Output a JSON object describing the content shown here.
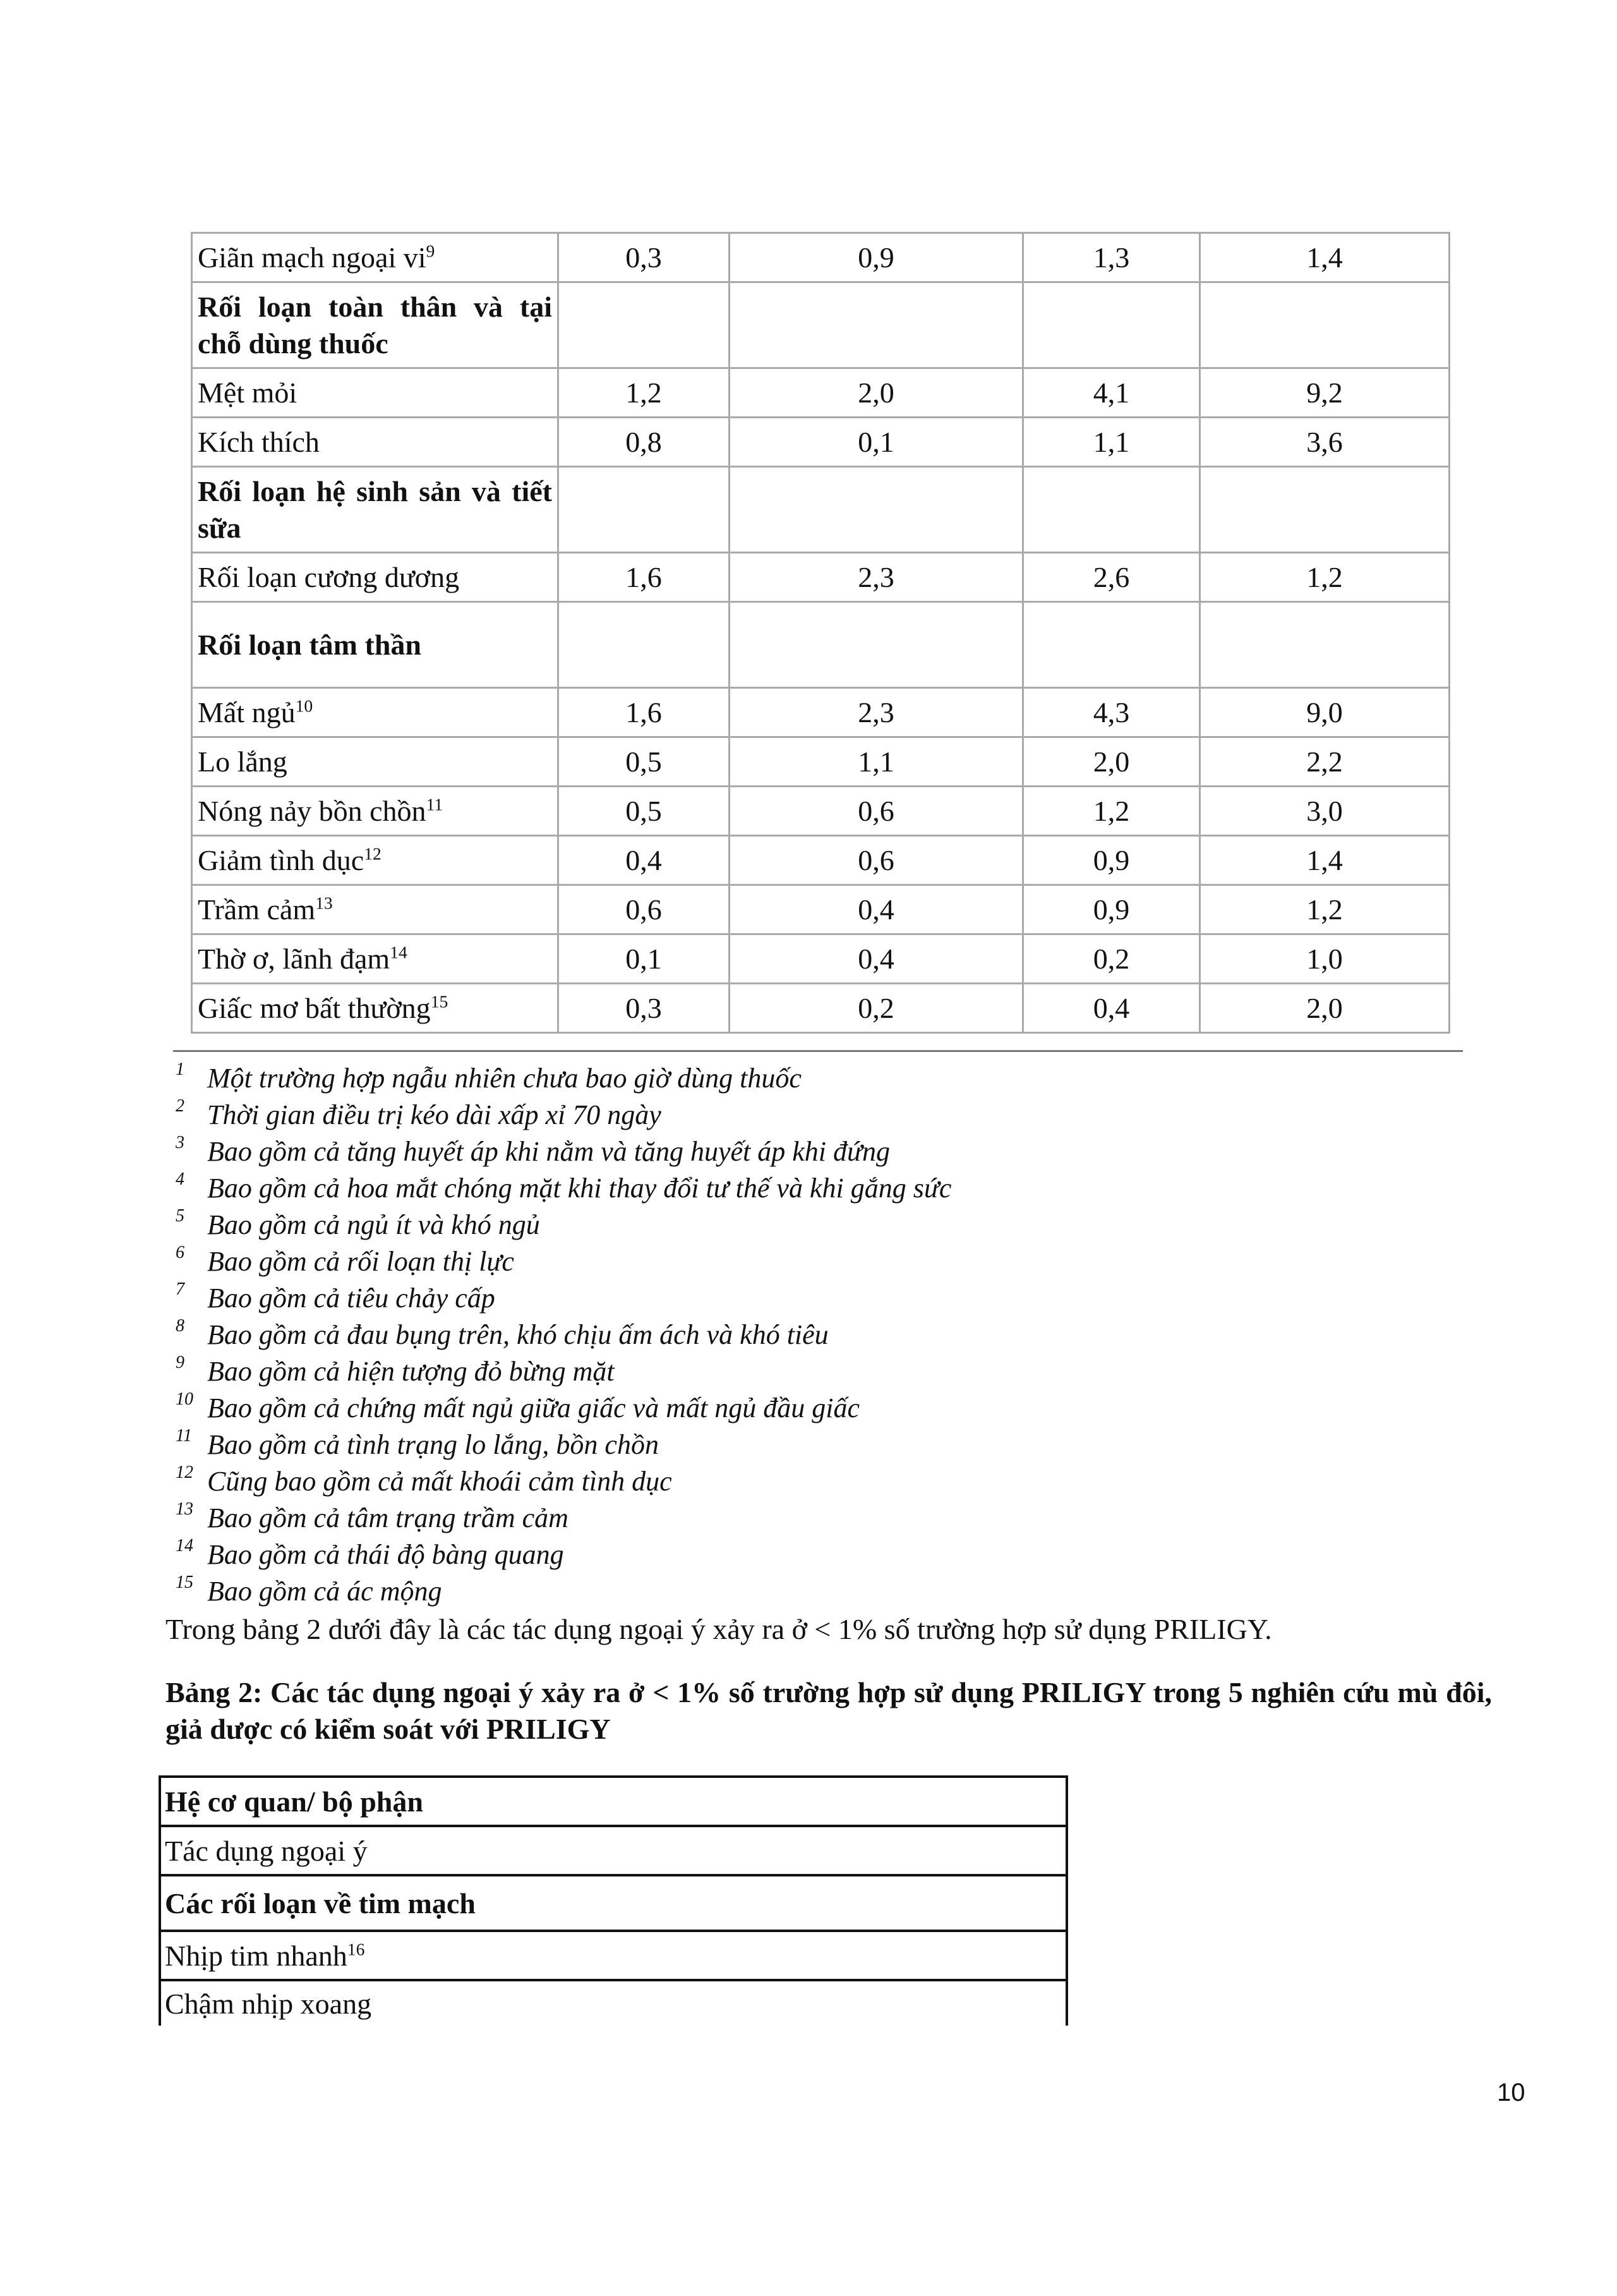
{
  "table1": {
    "rows": [
      {
        "label": "Giãn mạch ngoại vi",
        "sup": "9",
        "values": [
          "0,3",
          "0,9",
          "1,3",
          "1,4"
        ]
      },
      {
        "label": "Rối loạn toàn thân và tại chỗ dùng thuốc",
        "header": true
      },
      {
        "label": "Mệt mỏi",
        "sup": "",
        "values": [
          "1,2",
          "2,0",
          "4,1",
          "9,2"
        ]
      },
      {
        "label": "Kích thích",
        "sup": "",
        "values": [
          "0,8",
          "0,1",
          "1,1",
          "3,6"
        ]
      },
      {
        "label": "Rối loạn hệ sinh sản và tiết sữa",
        "header": true
      },
      {
        "label": "Rối loạn cương dương",
        "sup": "",
        "values": [
          "1,6",
          "2,3",
          "2,6",
          "1,2"
        ]
      },
      {
        "label": "Rối loạn tâm thần",
        "header": true
      },
      {
        "label": "Mất ngủ",
        "sup": "10",
        "values": [
          "1,6",
          "2,3",
          "4,3",
          "9,0"
        ]
      },
      {
        "label": "Lo lắng",
        "sup": "",
        "values": [
          "0,5",
          "1,1",
          "2,0",
          "2,2"
        ]
      },
      {
        "label": "Nóng nảy bồn chồn",
        "sup": "11",
        "values": [
          "0,5",
          "0,6",
          "1,2",
          "3,0"
        ]
      },
      {
        "label": "Giảm tình dục",
        "sup": "12",
        "values": [
          "0,4",
          "0,6",
          "0,9",
          "1,4"
        ]
      },
      {
        "label": "Trầm cảm",
        "sup": "13",
        "values": [
          "0,6",
          "0,4",
          "0,9",
          "1,2"
        ]
      },
      {
        "label": "Thờ ơ, lãnh đạm",
        "sup": "14",
        "values": [
          "0,1",
          "0,4",
          "0,2",
          "1,0"
        ]
      },
      {
        "label": "Giấc mơ bất thường",
        "sup": "15",
        "values": [
          "0,3",
          "0,2",
          "0,4",
          "2,0"
        ]
      }
    ]
  },
  "footnotes": [
    {
      "n": "1",
      "text": "Một trường hợp ngẫu nhiên chưa bao giờ dùng thuốc"
    },
    {
      "n": "2",
      "text": "Thời gian điều trị kéo dài xấp xỉ 70 ngày"
    },
    {
      "n": "3",
      "text": "Bao gồm cả tăng huyết áp khi nằm và tăng huyết áp khi đứng"
    },
    {
      "n": "4",
      "text": "Bao gồm cả hoa mắt chóng mặt khi thay đổi tư thế và khi gắng sức"
    },
    {
      "n": "5",
      "text": "Bao gồm cả ngủ ít và khó ngủ"
    },
    {
      "n": "6",
      "text": "Bao gồm cả rối loạn thị lực"
    },
    {
      "n": "7",
      "text": "Bao gồm cả tiêu chảy cấp"
    },
    {
      "n": "8",
      "text": "Bao gồm cả đau bụng trên, khó chịu ấm ách và khó tiêu"
    },
    {
      "n": "9",
      "text": "Bao gồm cả hiện tượng đỏ bừng mặt"
    },
    {
      "n": "10",
      "text": "Bao gồm cả chứng mất ngủ giữa giấc và mất ngủ đầu giấc"
    },
    {
      "n": "11",
      "text": "Bao gồm cả tình trạng lo lắng, bồn chồn"
    },
    {
      "n": "12",
      "text": "Cũng bao gồm cả mất khoái cảm tình dục"
    },
    {
      "n": "13",
      "text": "Bao gồm cả tâm trạng trầm cảm"
    },
    {
      "n": "14",
      "text": "Bao gồm cả thái độ bàng quang"
    },
    {
      "n": "15",
      "text": "Bao gồm cả ác mộng"
    }
  ],
  "paragraph": "Trong bảng 2 dưới đây là các tác dụng ngoại ý xảy ra ở < 1% số trường hợp sử dụng PRILIGY.",
  "table2_title": "Bảng 2: Các tác dụng ngoại ý xảy ra ở < 1% số trường hợp sử dụng PRILIGY trong 5 nghiên cứu mù đôi, giả dược có kiểm soát với PRILIGY",
  "table2": {
    "rows": [
      {
        "label": "Hệ cơ quan/ bộ phận",
        "bold": true,
        "sup": ""
      },
      {
        "label": "Tác dụng ngoại ý",
        "bold": false,
        "sup": ""
      },
      {
        "label": "Các rối loạn về tim mạch",
        "bold": true,
        "sup": ""
      },
      {
        "label": "Nhịp tim nhanh",
        "bold": false,
        "sup": "16"
      },
      {
        "label": "Chậm nhịp xoang",
        "bold": false,
        "sup": ""
      }
    ]
  },
  "page_number": "10"
}
